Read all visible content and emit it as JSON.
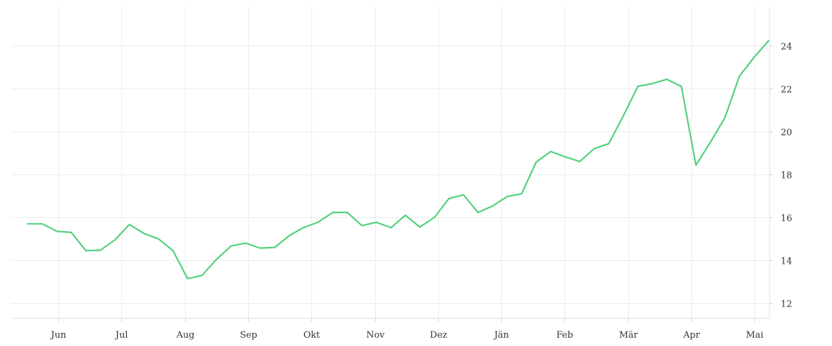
{
  "chart_data": {
    "type": "line",
    "title": "",
    "xlabel": "",
    "ylabel": "",
    "x_tick_labels": [
      "Jun",
      "Jul",
      "Aug",
      "Sep",
      "Okt",
      "Nov",
      "Dez",
      "Jän",
      "Feb",
      "Mär",
      "Apr",
      "Mai"
    ],
    "y_ticks": [
      12,
      14,
      16,
      18,
      20,
      22,
      24
    ],
    "ylim": [
      11.3,
      25.8
    ],
    "y_axis_side": "right",
    "grid": true,
    "legend": "none",
    "series": [
      {
        "color": "#4fd17a",
        "values": [
          15.7,
          15.7,
          15.35,
          15.3,
          14.45,
          14.47,
          14.95,
          15.67,
          15.25,
          15.0,
          14.45,
          13.15,
          13.3,
          14.05,
          14.67,
          14.8,
          14.57,
          14.6,
          15.15,
          15.53,
          15.78,
          16.23,
          16.23,
          15.62,
          15.77,
          15.52,
          16.1,
          15.55,
          16.0,
          16.88,
          17.05,
          16.23,
          16.53,
          16.97,
          17.1,
          18.57,
          19.07,
          18.82,
          18.6,
          19.2,
          19.43,
          20.72,
          22.1,
          22.23,
          22.43,
          22.1,
          18.43,
          19.5,
          20.65,
          22.58,
          23.45,
          24.22
        ]
      }
    ]
  }
}
